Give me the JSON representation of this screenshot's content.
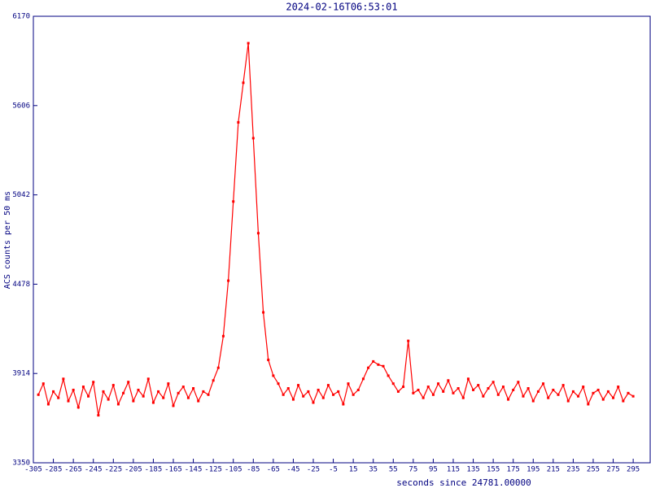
{
  "chart_data": {
    "type": "line",
    "title": "2024-02-16T06:53:01",
    "xlabel": "seconds since 24781.00000",
    "ylabel": "ACS counts per 50 ms",
    "xlim": [
      -305,
      312
    ],
    "ylim": [
      3350,
      6170
    ],
    "xticks": [
      -305,
      -285,
      -265,
      -245,
      -225,
      -205,
      -185,
      -165,
      -145,
      -125,
      -105,
      -85,
      -65,
      -45,
      -25,
      -5,
      15,
      35,
      55,
      75,
      95,
      115,
      135,
      155,
      175,
      195,
      215,
      235,
      255,
      275,
      295
    ],
    "yticks": [
      3350,
      3914,
      4478,
      5042,
      5606,
      6170
    ],
    "grid": false,
    "x": [
      -300,
      -295,
      -290,
      -285,
      -280,
      -275,
      -270,
      -265,
      -260,
      -255,
      -250,
      -245,
      -240,
      -235,
      -230,
      -225,
      -220,
      -215,
      -210,
      -205,
      -200,
      -195,
      -190,
      -185,
      -180,
      -175,
      -170,
      -165,
      -160,
      -155,
      -150,
      -145,
      -140,
      -135,
      -130,
      -125,
      -120,
      -115,
      -110,
      -105,
      -100,
      -95,
      -90,
      -85,
      -80,
      -75,
      -70,
      -65,
      -60,
      -55,
      -50,
      -45,
      -40,
      -35,
      -30,
      -25,
      -20,
      -15,
      -10,
      -5,
      0,
      5,
      10,
      15,
      20,
      25,
      30,
      35,
      40,
      45,
      50,
      55,
      60,
      65,
      70,
      75,
      80,
      85,
      90,
      95,
      100,
      105,
      110,
      115,
      120,
      125,
      130,
      135,
      140,
      145,
      150,
      155,
      160,
      165,
      170,
      175,
      180,
      185,
      190,
      195,
      200,
      205,
      210,
      215,
      220,
      225,
      230,
      235,
      240,
      245,
      250,
      255,
      260,
      265,
      270,
      275,
      280,
      285,
      290,
      295
    ],
    "series": [
      {
        "color": "#ff0000",
        "values": [
          3780,
          3850,
          3720,
          3800,
          3760,
          3880,
          3740,
          3810,
          3700,
          3830,
          3770,
          3860,
          3650,
          3800,
          3750,
          3840,
          3720,
          3790,
          3860,
          3740,
          3810,
          3770,
          3880,
          3730,
          3800,
          3760,
          3850,
          3710,
          3790,
          3830,
          3760,
          3820,
          3740,
          3800,
          3780,
          3870,
          3950,
          4150,
          4500,
          5000,
          5500,
          5750,
          6000,
          5400,
          4800,
          4300,
          4000,
          3900,
          3850,
          3780,
          3820,
          3750,
          3840,
          3770,
          3800,
          3730,
          3810,
          3760,
          3840,
          3780,
          3800,
          3720,
          3850,
          3780,
          3810,
          3880,
          3950,
          3990,
          3970,
          3960,
          3900,
          3850,
          3800,
          3830,
          4120,
          3790,
          3810,
          3760,
          3830,
          3780,
          3850,
          3800,
          3870,
          3790,
          3820,
          3760,
          3880,
          3810,
          3840,
          3770,
          3820,
          3860,
          3780,
          3830,
          3750,
          3810,
          3860,
          3770,
          3820,
          3740,
          3800,
          3850,
          3760,
          3810,
          3780,
          3840,
          3740,
          3800,
          3770,
          3830,
          3720,
          3790,
          3810,
          3750,
          3800,
          3760,
          3830,
          3740,
          3790,
          3770
        ]
      }
    ]
  }
}
